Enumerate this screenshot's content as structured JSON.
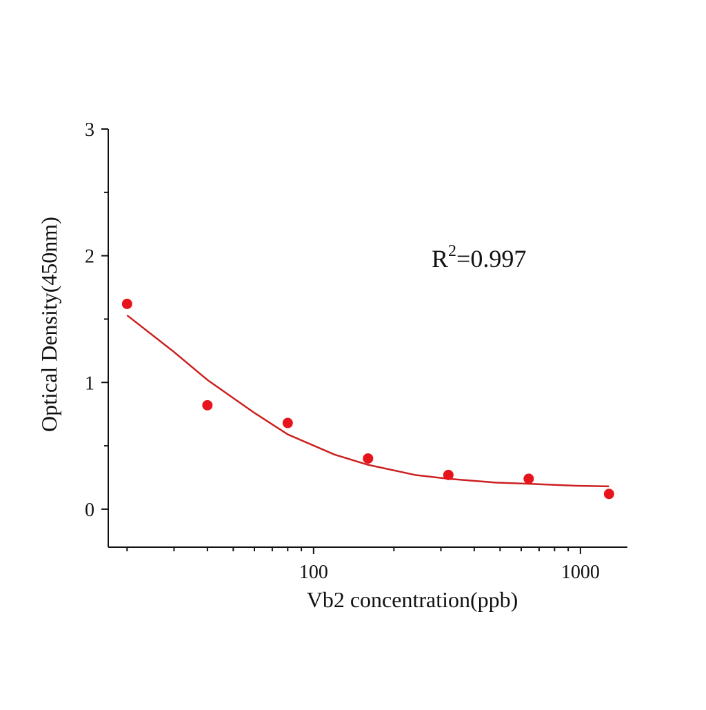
{
  "chart_data": {
    "type": "scatter",
    "title": "",
    "xlabel": "Vb2 concentration(ppb)",
    "ylabel": "Optical Density(450nm)",
    "x_scale": "log",
    "xlim": [
      17,
      1500
    ],
    "ylim": [
      -0.3,
      3
    ],
    "x_major_ticks": [
      100,
      1000
    ],
    "x_tick_labels": [
      "100",
      "1000"
    ],
    "y_major_ticks": [
      0,
      1,
      2,
      3
    ],
    "y_tick_labels": [
      "0",
      "1",
      "2",
      "3"
    ],
    "grid": false,
    "series": [
      {
        "name": "measured",
        "kind": "points",
        "x": [
          20,
          40,
          80,
          160,
          320,
          640,
          1280
        ],
        "y": [
          1.62,
          0.82,
          0.68,
          0.4,
          0.27,
          0.24,
          0.12
        ]
      },
      {
        "name": "fit",
        "kind": "curve",
        "x": [
          20,
          30,
          40,
          60,
          80,
          120,
          160,
          240,
          320,
          480,
          640,
          960,
          1280
        ],
        "y": [
          1.53,
          1.24,
          1.02,
          0.76,
          0.59,
          0.43,
          0.35,
          0.27,
          0.24,
          0.21,
          0.2,
          0.185,
          0.18
        ]
      }
    ],
    "annotation": {
      "prefix": "R",
      "superscript": "2",
      "text": "=0.997"
    },
    "colors": {
      "series": "#e8141c",
      "curve": "#cc1f1f",
      "axis": "#111111"
    }
  }
}
